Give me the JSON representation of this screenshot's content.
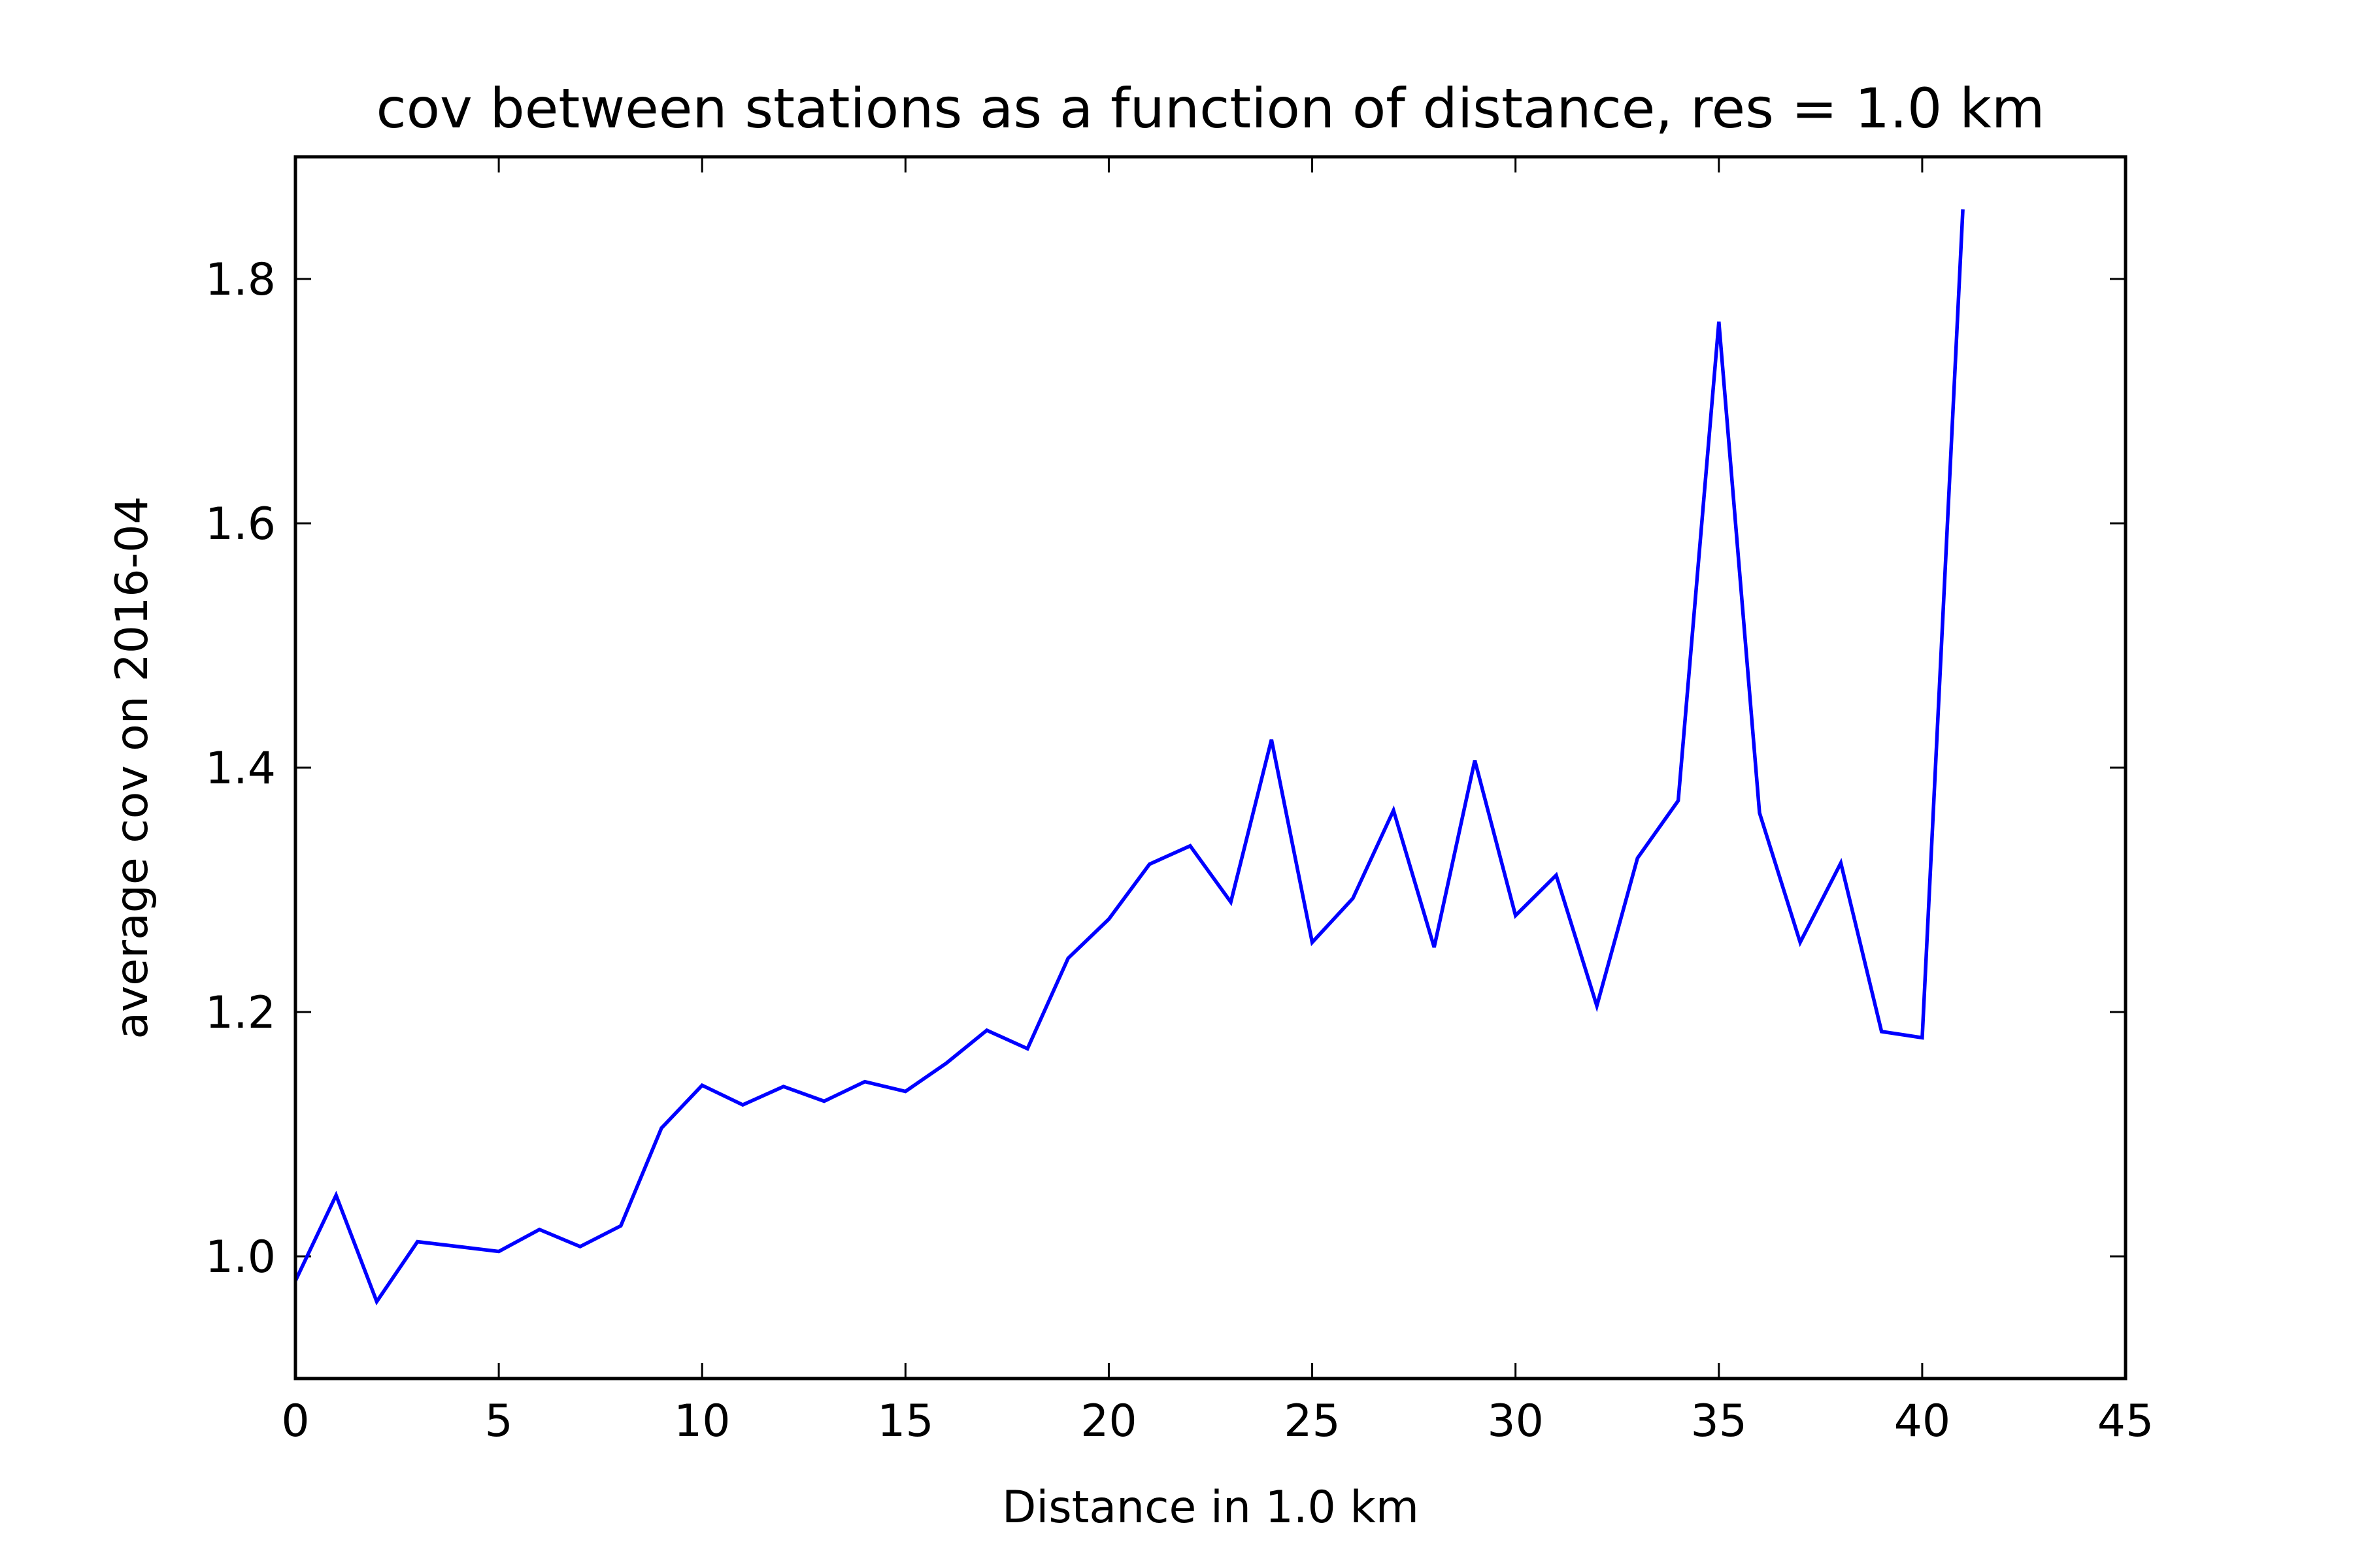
{
  "chart_data": {
    "type": "line",
    "title": "cov between stations as a function of distance, res = 1.0 km",
    "xlabel": "Distance in 1.0 km",
    "ylabel": "average cov on 2016-04",
    "xlim": [
      0,
      45
    ],
    "ylim": [
      0.9,
      1.9
    ],
    "xticks": [
      0,
      5,
      10,
      15,
      20,
      25,
      30,
      35,
      40,
      45
    ],
    "yticks": [
      1.0,
      1.2,
      1.4,
      1.6,
      1.8
    ],
    "xtick_labels": [
      "0",
      "5",
      "10",
      "15",
      "20",
      "25",
      "30",
      "35",
      "40",
      "45"
    ],
    "ytick_labels": [
      "1.0",
      "1.2",
      "1.4",
      "1.6",
      "1.8"
    ],
    "grid": false,
    "legend": "none",
    "series": [
      {
        "color": "#0000ff",
        "x": [
          0,
          1,
          2,
          3,
          4,
          5,
          6,
          7,
          8,
          9,
          10,
          11,
          12,
          13,
          14,
          15,
          16,
          17,
          18,
          19,
          20,
          21,
          22,
          23,
          24,
          25,
          26,
          27,
          28,
          29,
          30,
          31,
          32,
          33,
          34,
          35,
          36,
          37,
          38,
          39,
          40,
          41
        ],
        "y": [
          0.98,
          1.05,
          0.963,
          1.012,
          1.008,
          1.004,
          1.022,
          1.008,
          1.025,
          1.105,
          1.14,
          1.124,
          1.139,
          1.127,
          1.143,
          1.135,
          1.158,
          1.185,
          1.17,
          1.244,
          1.276,
          1.321,
          1.336,
          1.29,
          1.423,
          1.257,
          1.293,
          1.365,
          1.253,
          1.406,
          1.279,
          1.312,
          1.205,
          1.326,
          1.373,
          1.765,
          1.363,
          1.257,
          1.322,
          1.184,
          1.179,
          1.857
        ]
      }
    ]
  }
}
